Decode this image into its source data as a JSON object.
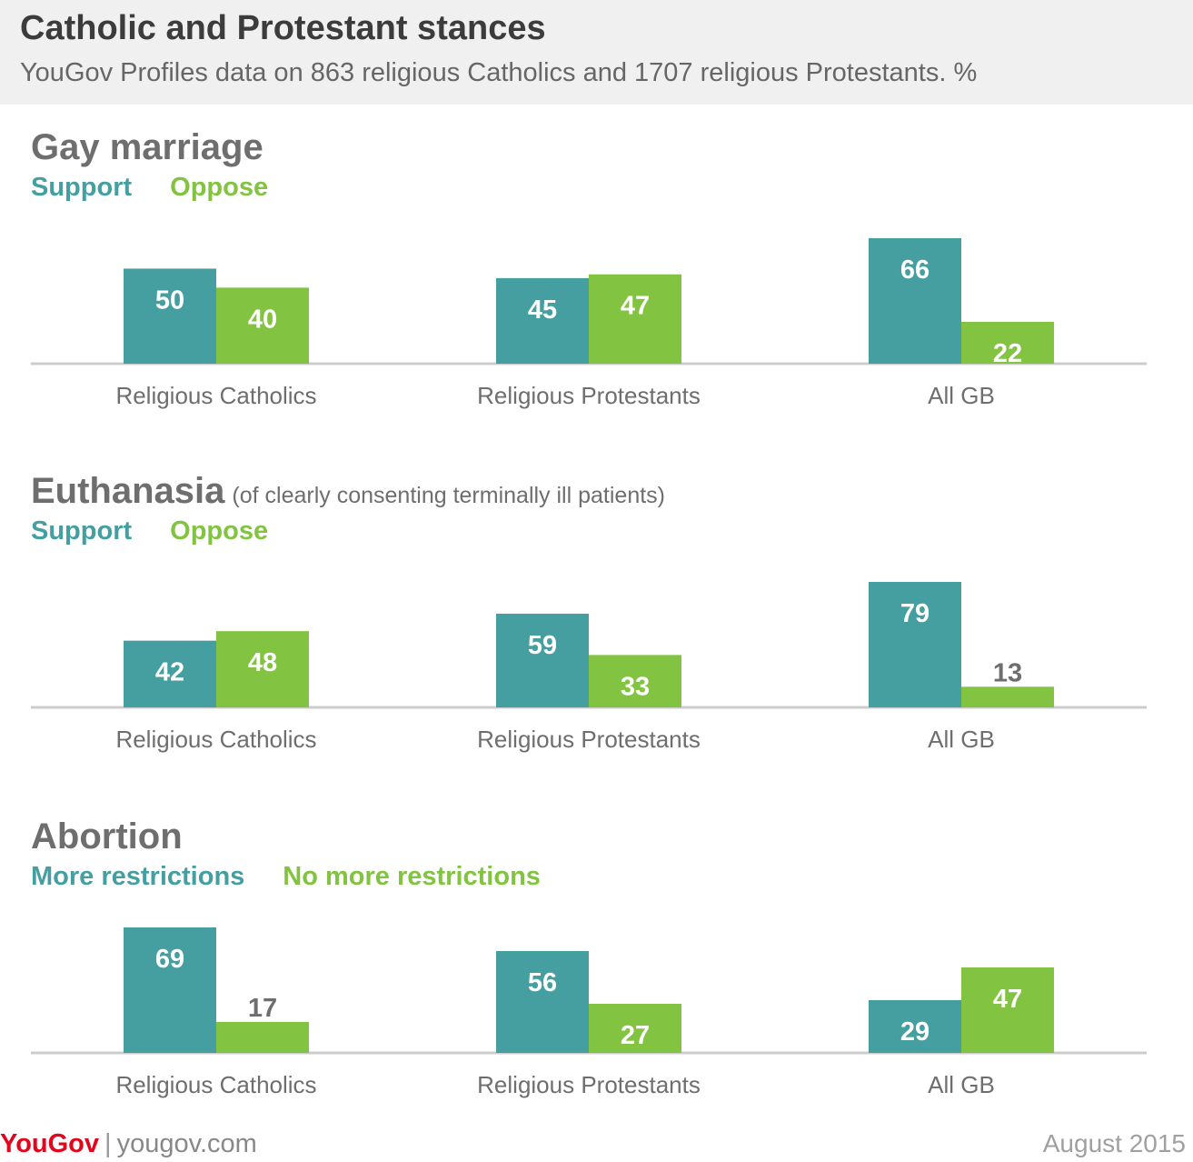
{
  "header": {
    "title": "Catholic and Protestant stances",
    "subtitle": "YouGov Profiles data on 863 religious Catholics and 1707 religious Protestants. %"
  },
  "footer": {
    "logo_you": "You",
    "logo_gov": "Gov",
    "separator": "|",
    "site": "yougov.com",
    "date": "August 2015"
  },
  "colors": {
    "series1": "#459ea0",
    "series2": "#82c341"
  },
  "chart_data": [
    {
      "type": "bar",
      "title": "Gay marriage",
      "note": "",
      "categories": [
        "Religious Catholics",
        "Religious Protestants",
        "All GB"
      ],
      "series": [
        {
          "name": "Support",
          "values": [
            50,
            45,
            66
          ]
        },
        {
          "name": "Oppose",
          "values": [
            40,
            47,
            22
          ]
        }
      ],
      "ylim": [
        0,
        66
      ]
    },
    {
      "type": "bar",
      "title": "Euthanasia",
      "note": "(of clearly consenting terminally ill patients)",
      "categories": [
        "Religious Catholics",
        "Religious Protestants",
        "All GB"
      ],
      "series": [
        {
          "name": "Support",
          "values": [
            42,
            59,
            79
          ]
        },
        {
          "name": "Oppose",
          "values": [
            48,
            33,
            13
          ]
        }
      ],
      "ylim": [
        0,
        79
      ]
    },
    {
      "type": "bar",
      "title": "Abortion",
      "note": "",
      "categories": [
        "Religious Catholics",
        "Religious Protestants",
        "All GB"
      ],
      "series": [
        {
          "name": "More restrictions",
          "values": [
            69,
            56,
            29
          ]
        },
        {
          "name": "No more restrictions",
          "values": [
            17,
            27,
            47
          ]
        }
      ],
      "ylim": [
        0,
        69
      ]
    }
  ]
}
